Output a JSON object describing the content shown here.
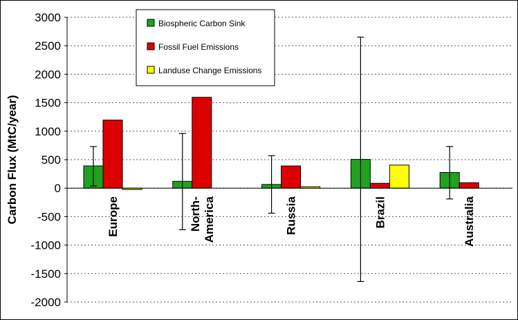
{
  "chart_data": {
    "type": "bar",
    "ylabel": "Carbon Flux (MtC/year)",
    "ylim": [
      -2000,
      3000
    ],
    "ytick_step": 500,
    "grid": "horizontal-dotted",
    "legend_position": "top-center",
    "categories": [
      "Europe",
      "North-America",
      "Russia",
      "Brazil",
      "Australia"
    ],
    "category_labels": [
      [
        "Europe"
      ],
      [
        "North-",
        "America"
      ],
      [
        "Russia"
      ],
      [
        "Brazil"
      ],
      [
        "Australia"
      ]
    ],
    "series": [
      {
        "name": "Biospheric Carbon Sink",
        "color": "#1fa31f",
        "values": [
          390,
          120,
          65,
          505,
          275
        ],
        "error_low": [
          40,
          -730,
          -440,
          -1640,
          -190
        ],
        "error_high": [
          730,
          960,
          570,
          2650,
          730
        ]
      },
      {
        "name": "Fossil Fuel Emissions",
        "color": "#dd0000",
        "values": [
          1195,
          1595,
          390,
          85,
          95
        ]
      },
      {
        "name": "Landuse Change Emissions",
        "color": "#ffff00",
        "values": [
          -25,
          null,
          25,
          405,
          null
        ]
      }
    ]
  }
}
